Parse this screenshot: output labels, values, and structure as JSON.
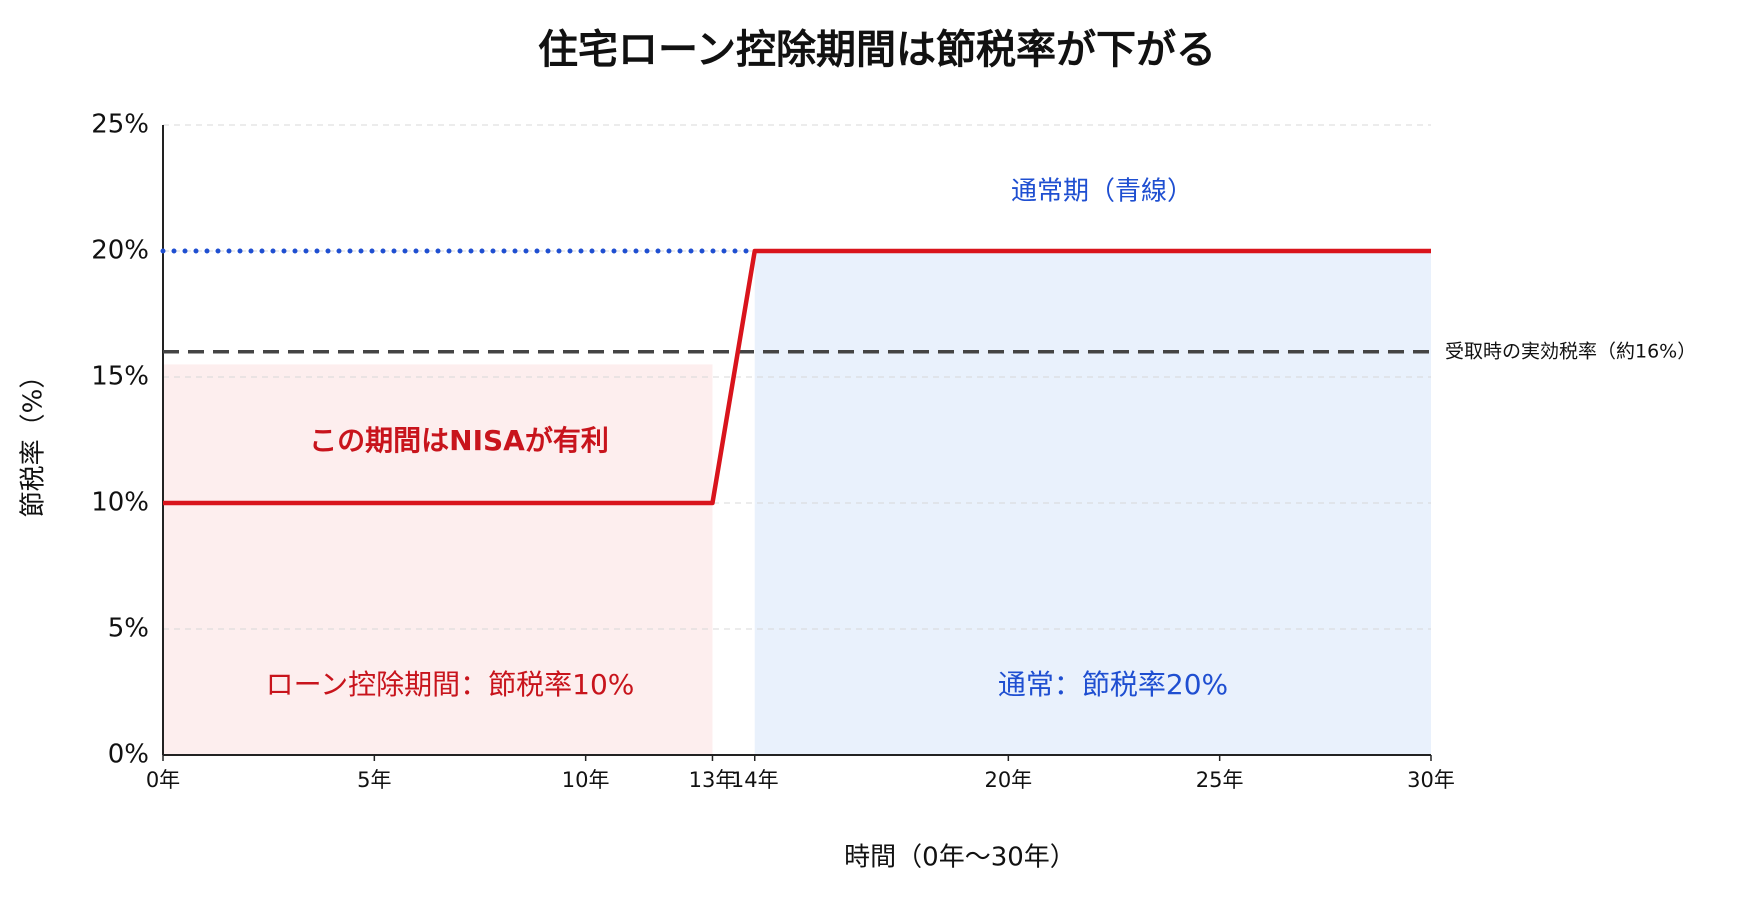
{
  "chart_data": {
    "type": "line",
    "title": "住宅ローン控除期間は節税率が下がる",
    "x_label": "時間（0年〜30年）",
    "y_label": "節税率（%）",
    "xlim": [
      0,
      30
    ],
    "xticks": [
      {
        "value": 0,
        "label": "0年"
      },
      {
        "value": 5,
        "label": "5年"
      },
      {
        "value": 10,
        "label": "10年"
      },
      {
        "value": 13,
        "label": "13年"
      },
      {
        "value": 14,
        "label": "14年"
      },
      {
        "value": 20,
        "label": "20年"
      },
      {
        "value": 25,
        "label": "25年"
      },
      {
        "value": 30,
        "label": "30年"
      }
    ],
    "ylim": [
      0,
      25
    ],
    "yticks": [
      {
        "value": 0,
        "label": "0%"
      },
      {
        "value": 5,
        "label": "5%"
      },
      {
        "value": 10,
        "label": "10%"
      },
      {
        "value": 15,
        "label": "15%"
      },
      {
        "value": 20,
        "label": "20%"
      },
      {
        "value": 25,
        "label": "25%"
      }
    ],
    "grid": true,
    "shaded_regions": [
      {
        "x": [
          0,
          13
        ],
        "top": 15.5,
        "color": "#fdeeee"
      },
      {
        "x": [
          14,
          30
        ],
        "top": 20,
        "color": "#e9f1fc"
      }
    ],
    "series": [
      {
        "color": "#1f4fd1",
        "style": "dotted",
        "x": [
          0,
          14
        ],
        "values": [
          20,
          20
        ]
      },
      {
        "name": "受取時の実効税率（約16%）",
        "color": "#444444",
        "style": "dashed",
        "x": [
          0,
          30
        ],
        "values": [
          16,
          16
        ]
      },
      {
        "color": "#d9141c",
        "style": "solid",
        "x": [
          0,
          13,
          14,
          30
        ],
        "values": [
          10,
          10,
          20,
          20
        ]
      }
    ],
    "annotations": [
      {
        "text": "通常期（青線）",
        "color": "#1f4fd1"
      },
      {
        "text": "この期間はNISAが有利",
        "color": "#c8141c"
      },
      {
        "text": "ローン控除期間：節税率10%",
        "color": "#c8141c"
      },
      {
        "text": "通常：節税率20%",
        "color": "#1f4fd1"
      }
    ]
  }
}
